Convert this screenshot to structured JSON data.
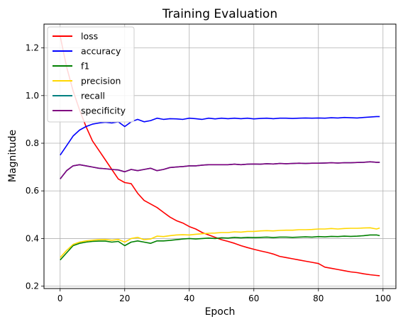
{
  "chart_data": {
    "type": "line",
    "title": "Training Evaluation",
    "xlabel": "Epoch",
    "ylabel": "Magnitude",
    "xlim": [
      -5,
      104
    ],
    "ylim": [
      0.19,
      1.3
    ],
    "xticks": [
      0,
      20,
      40,
      60,
      80,
      100
    ],
    "yticks": [
      0.2,
      0.4,
      0.6,
      0.8,
      1.0,
      1.2
    ],
    "xtick_labels": [
      "0",
      "20",
      "40",
      "60",
      "80",
      "100"
    ],
    "ytick_labels": [
      "0.2",
      "0.4",
      "0.6",
      "0.8",
      "1.0",
      "1.2"
    ],
    "grid": true,
    "legend_position": "upper-left",
    "x": [
      0,
      2,
      4,
      6,
      8,
      10,
      12,
      14,
      16,
      18,
      20,
      22,
      24,
      26,
      28,
      30,
      32,
      34,
      36,
      38,
      40,
      42,
      44,
      46,
      48,
      50,
      52,
      54,
      56,
      58,
      60,
      62,
      64,
      66,
      68,
      70,
      72,
      74,
      76,
      78,
      80,
      82,
      84,
      86,
      88,
      90,
      92,
      94,
      96,
      98,
      99
    ],
    "series": [
      {
        "name": "loss",
        "color": "#ff0000",
        "values": [
          1.25,
          1.12,
          1.02,
          0.94,
          0.87,
          0.81,
          0.77,
          0.73,
          0.69,
          0.65,
          0.635,
          0.63,
          0.59,
          0.56,
          0.545,
          0.53,
          0.51,
          0.49,
          0.475,
          0.465,
          0.45,
          0.44,
          0.425,
          0.415,
          0.405,
          0.395,
          0.388,
          0.38,
          0.37,
          0.362,
          0.355,
          0.348,
          0.342,
          0.335,
          0.325,
          0.32,
          0.315,
          0.31,
          0.305,
          0.3,
          0.295,
          0.28,
          0.275,
          0.27,
          0.265,
          0.26,
          0.257,
          0.252,
          0.248,
          0.245,
          0.244
        ]
      },
      {
        "name": "accuracy",
        "color": "#0000ff",
        "values": [
          0.75,
          0.79,
          0.83,
          0.855,
          0.87,
          0.88,
          0.885,
          0.888,
          0.885,
          0.89,
          0.87,
          0.89,
          0.9,
          0.89,
          0.895,
          0.905,
          0.9,
          0.903,
          0.902,
          0.9,
          0.905,
          0.903,
          0.9,
          0.905,
          0.902,
          0.905,
          0.903,
          0.905,
          0.903,
          0.905,
          0.902,
          0.904,
          0.905,
          0.903,
          0.905,
          0.905,
          0.904,
          0.905,
          0.906,
          0.905,
          0.906,
          0.905,
          0.907,
          0.906,
          0.908,
          0.907,
          0.906,
          0.908,
          0.91,
          0.912,
          0.912
        ]
      },
      {
        "name": "f1",
        "color": "#008000",
        "values": [
          0.31,
          0.34,
          0.37,
          0.38,
          0.385,
          0.388,
          0.389,
          0.389,
          0.385,
          0.388,
          0.37,
          0.385,
          0.39,
          0.385,
          0.38,
          0.39,
          0.39,
          0.392,
          0.395,
          0.398,
          0.4,
          0.398,
          0.4,
          0.402,
          0.4,
          0.403,
          0.402,
          0.405,
          0.403,
          0.405,
          0.404,
          0.405,
          0.406,
          0.404,
          0.406,
          0.406,
          0.405,
          0.406,
          0.407,
          0.406,
          0.408,
          0.407,
          0.409,
          0.408,
          0.41,
          0.409,
          0.41,
          0.412,
          0.415,
          0.415,
          0.412
        ]
      },
      {
        "name": "precision",
        "color": "#ffd700",
        "values": [
          0.32,
          0.35,
          0.375,
          0.385,
          0.39,
          0.393,
          0.395,
          0.396,
          0.393,
          0.396,
          0.385,
          0.4,
          0.405,
          0.395,
          0.398,
          0.41,
          0.408,
          0.412,
          0.415,
          0.416,
          0.415,
          0.418,
          0.42,
          0.422,
          0.423,
          0.425,
          0.425,
          0.428,
          0.427,
          0.43,
          0.43,
          0.432,
          0.433,
          0.432,
          0.434,
          0.435,
          0.435,
          0.437,
          0.437,
          0.438,
          0.44,
          0.44,
          0.442,
          0.44,
          0.442,
          0.443,
          0.443,
          0.444,
          0.445,
          0.44,
          0.444
        ]
      },
      {
        "name": "recall",
        "color": "#008080",
        "values": [
          0.65,
          0.685,
          0.705,
          0.71,
          0.705,
          0.7,
          0.695,
          0.693,
          0.69,
          0.688,
          0.68,
          0.69,
          0.685,
          0.69,
          0.695,
          0.685,
          0.69,
          0.698,
          0.7,
          0.702,
          0.705,
          0.705,
          0.708,
          0.71,
          0.71,
          0.71,
          0.71,
          0.712,
          0.71,
          0.712,
          0.713,
          0.712,
          0.714,
          0.713,
          0.715,
          0.714,
          0.715,
          0.716,
          0.715,
          0.716,
          0.716,
          0.717,
          0.718,
          0.717,
          0.718,
          0.718,
          0.719,
          0.72,
          0.722,
          0.72,
          0.72
        ]
      },
      {
        "name": "specificity",
        "color": "#800080",
        "values": [
          0.65,
          0.685,
          0.705,
          0.71,
          0.705,
          0.7,
          0.695,
          0.693,
          0.69,
          0.688,
          0.68,
          0.69,
          0.685,
          0.69,
          0.695,
          0.685,
          0.69,
          0.698,
          0.7,
          0.702,
          0.705,
          0.705,
          0.708,
          0.71,
          0.71,
          0.71,
          0.71,
          0.712,
          0.71,
          0.712,
          0.713,
          0.712,
          0.714,
          0.713,
          0.715,
          0.714,
          0.715,
          0.716,
          0.715,
          0.716,
          0.716,
          0.717,
          0.718,
          0.717,
          0.718,
          0.718,
          0.719,
          0.72,
          0.722,
          0.72,
          0.72
        ]
      }
    ]
  }
}
